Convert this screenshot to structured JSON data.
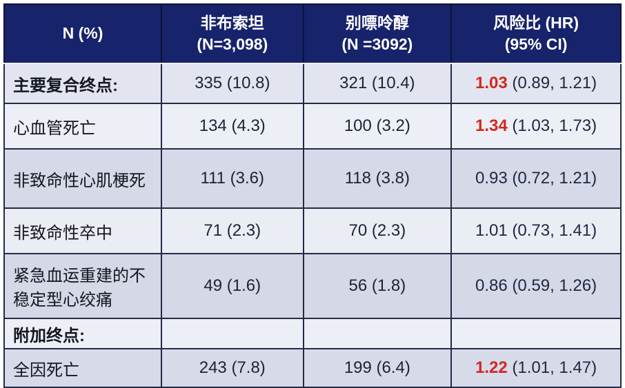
{
  "table": {
    "header": {
      "rowlabel": "N (%)",
      "columns": [
        {
          "line1": "非布索坦",
          "line2": "(N=3,098)"
        },
        {
          "line1": "别嘌呤醇",
          "line2": "(N =3092)"
        },
        {
          "line1": "风险比 (HR)",
          "line2": "(95% CI)"
        }
      ]
    },
    "rows": [
      {
        "label": "主要复合终点:",
        "feb": "335 (10.8)",
        "allo": "321 (10.4)",
        "hr_red": "1.03",
        "hr_rest": " (0.89, 1.21)"
      },
      {
        "label": "心血管死亡",
        "feb": "134 (4.3)",
        "allo": "100 (3.2)",
        "hr_red": "1.34",
        "hr_rest": " (1.03, 1.73)"
      },
      {
        "label": "非致命性心肌梗死",
        "feb": "111 (3.6)",
        "allo": "118 (3.8)",
        "hr_red": "",
        "hr_rest": "0.93 (0.72, 1.21)"
      },
      {
        "label": "非致命性卒中",
        "feb": "71 (2.3)",
        "allo": "70 (2.3)",
        "hr_red": "",
        "hr_rest": "1.01 (0.73, 1.41)"
      },
      {
        "label": "紧急血运重建的不稳定型心绞痛",
        "feb": "49 (1.6)",
        "allo": "56 (1.8)",
        "hr_red": "",
        "hr_rest": "0.86 (0.59, 1.26)"
      },
      {
        "label": "附加终点:",
        "feb": "",
        "allo": "",
        "hr_red": "",
        "hr_rest": ""
      },
      {
        "label": "全因死亡",
        "feb": "243 (7.8)",
        "allo": "199 (6.4)",
        "hr_red": "1.22",
        "hr_rest": " (1.01, 1.47)"
      }
    ]
  },
  "colors": {
    "header_bg": "#17236b",
    "header_text": "#ffffff",
    "highlight_red": "#d3261f",
    "body_text": "#1d2335",
    "row_light": "#edeff6",
    "row_medium": "#d5d9e8",
    "cell_border": "#232a45"
  },
  "chart_data": {
    "type": "table",
    "columns": [
      "N (%)",
      "非布索坦 (N=3,098)",
      "别嘌呤醇 (N =3092)",
      "风险比 (HR) (95% CI)"
    ],
    "rows": [
      [
        "主要复合终点:",
        "335 (10.8)",
        "321 (10.4)",
        "1.03 (0.89, 1.21)"
      ],
      [
        "心血管死亡",
        "134 (4.3)",
        "100 (3.2)",
        "1.34 (1.03, 1.73)"
      ],
      [
        "非致命性心肌梗死",
        "111 (3.6)",
        "118 (3.8)",
        "0.93 (0.72, 1.21)"
      ],
      [
        "非致命性卒中",
        "71 (2.3)",
        "70 (2.3)",
        "1.01 (0.73, 1.41)"
      ],
      [
        "紧急血运重建的不稳定型心绞痛",
        "49 (1.6)",
        "56 (1.8)",
        "0.86 (0.59, 1.26)"
      ],
      [
        "附加终点:",
        "",
        "",
        ""
      ],
      [
        "全因死亡",
        "243 (7.8)",
        "199 (6.4)",
        "1.22 (1.01, 1.47)"
      ]
    ]
  }
}
